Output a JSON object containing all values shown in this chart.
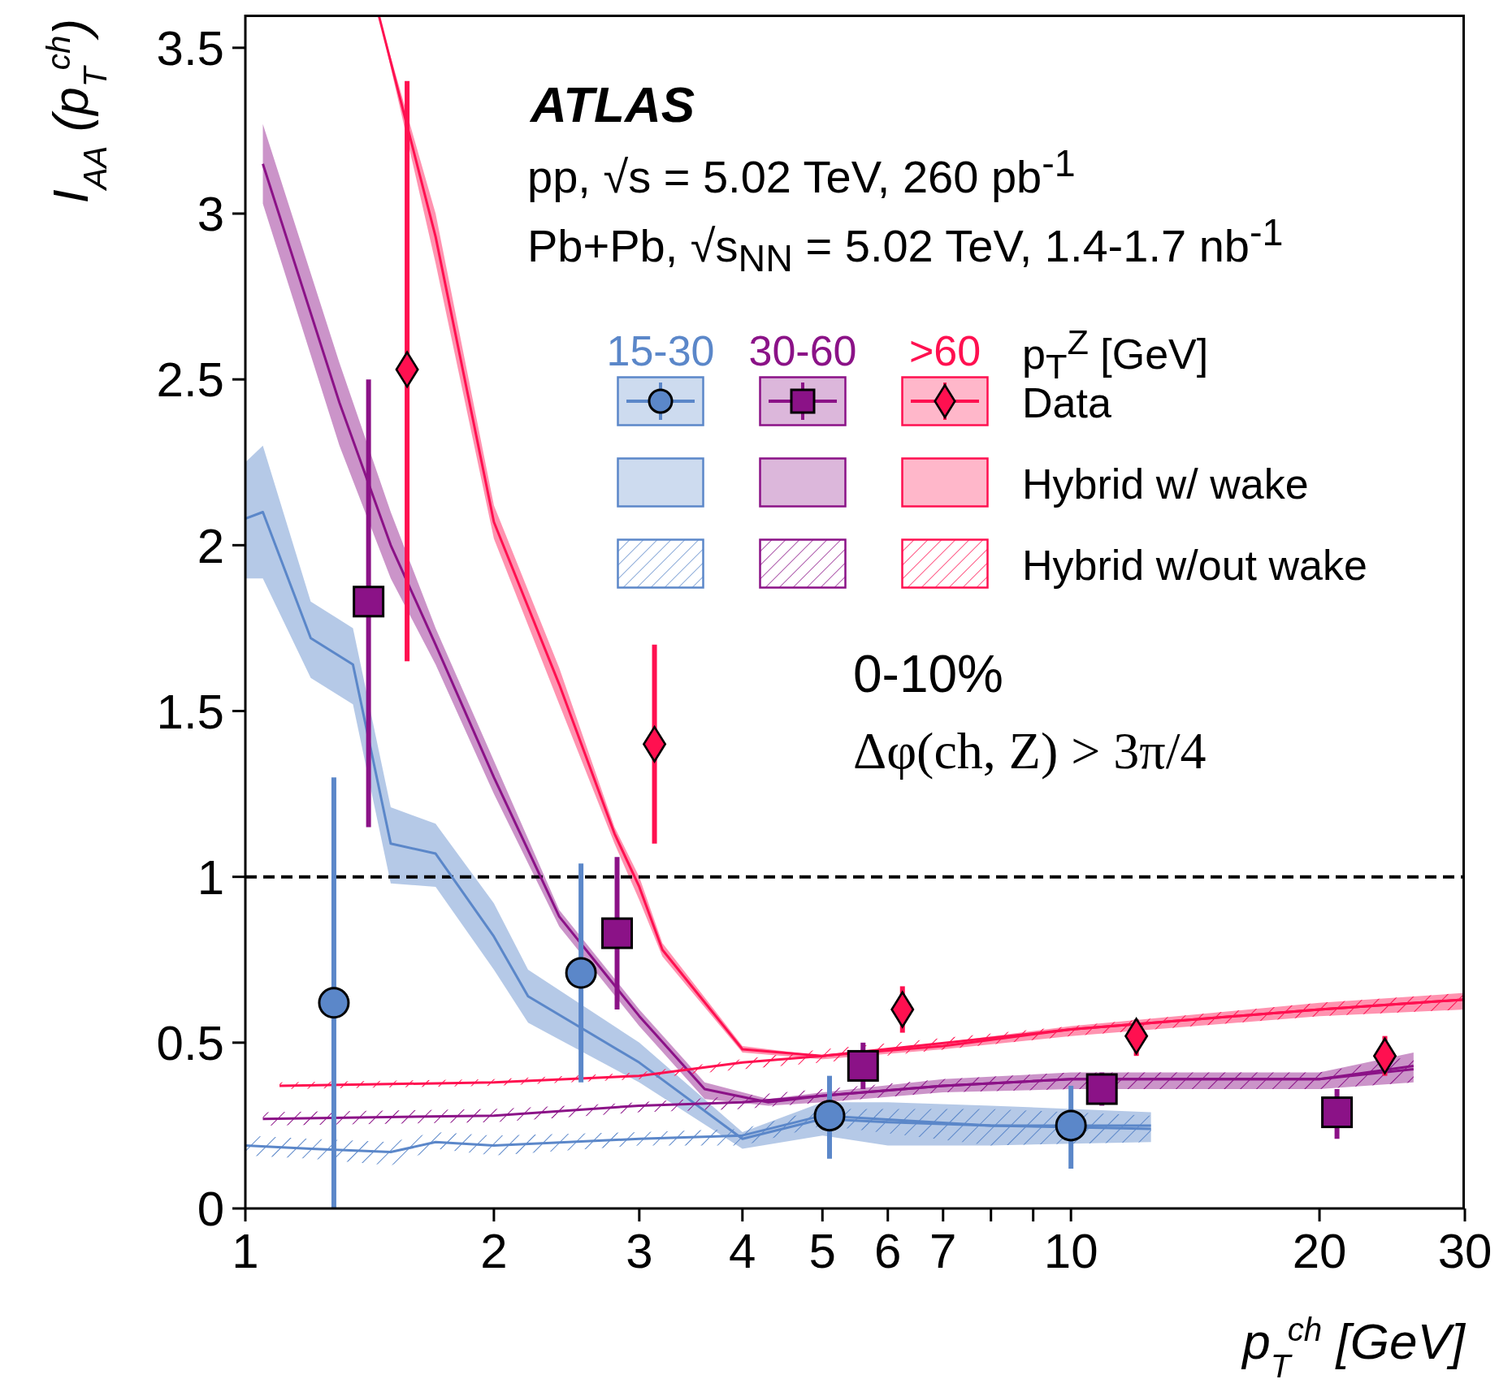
{
  "chart_data": {
    "type": "scatter",
    "xlabel": "p$_{T}$$^{ch}$ [GeV]",
    "ylabel": "I$_{AA}$ (p$_{T}$$^{ch}$)",
    "legend_title": "p$_{T}$$^{Z}$ [GeV]",
    "legend": "top",
    "log": "x",
    "xlim": [
      1,
      30
    ],
    "xticks": [
      1,
      2,
      3,
      4,
      5,
      6,
      7,
      {
        "value": 8,
        "label": null
      },
      {
        "value": 9,
        "label": null
      },
      10,
      20,
      30
    ],
    "ylim": [
      0,
      3.6
    ],
    "yticks": [
      0,
      0.5,
      1,
      1.5,
      2,
      2.5,
      3,
      3.5
    ],
    "ref_lines": [
      {
        "axis": "y",
        "value": 1,
        "color": "#000000",
        "line_style": "dashed"
      }
    ],
    "annotations": [
      "ATLAS",
      "pp, √s = 5.02 TeV, 260 pb$^{-1}$",
      "Pb+Pb, √s$_{NN}$ = 5.02 TeV, 1.4-1.7 nb$^{-1}$",
      "0-10%",
      "Δφ(ch, Z) > 3π/4",
      "Data",
      "Hybrid w/ wake",
      "Hybrid w/out wake"
    ],
    "series": [
      {
        "name": "15-30",
        "marker": "circle",
        "color": "#5b87c9",
        "x": [
          1.28,
          2.55,
          5.1,
          10
        ],
        "values": [
          0.62,
          0.71,
          0.28,
          0.25
        ],
        "errors": [
          [
            0,
            1.3
          ],
          [
            0.38,
            1.04
          ],
          [
            0.15,
            0.4
          ],
          [
            0.12,
            0.37
          ]
        ]
      },
      {
        "name": "30-60",
        "marker": "square",
        "color": "#8b1287",
        "x": [
          1.41,
          2.82,
          5.6,
          10.9,
          21
        ],
        "values": [
          1.83,
          0.83,
          0.43,
          0.36,
          0.29
        ],
        "errors": [
          [
            1.15,
            2.5
          ],
          [
            0.6,
            1.06
          ],
          [
            0.36,
            0.5
          ],
          [
            0.31,
            0.41
          ],
          [
            0.21,
            0.36
          ]
        ]
      },
      {
        "name": ">60",
        "marker": "diamond",
        "color": "#ff1050",
        "x": [
          1.57,
          3.13,
          6.25,
          12,
          24
        ],
        "values": [
          2.53,
          1.4,
          0.6,
          0.52,
          0.46
        ],
        "errors": [
          [
            1.65,
            3.4
          ],
          [
            1.1,
            1.7
          ],
          [
            0.53,
            0.67
          ],
          [
            0.46,
            0.57
          ],
          [
            0.4,
            0.52
          ]
        ]
      },
      {
        "type": "line",
        "color": "#5b87c9",
        "x": [
          1,
          1.05,
          1.2,
          1.35,
          1.5,
          1.7,
          2,
          2.2,
          3,
          4,
          5,
          6,
          8,
          12.5
        ],
        "values": [
          2.08,
          2.1,
          1.72,
          1.64,
          1.1,
          1.07,
          0.82,
          0.64,
          0.44,
          0.21,
          0.27,
          0.26,
          0.25,
          0.25
        ],
        "lower": [
          1.9,
          1.9,
          1.6,
          1.52,
          0.98,
          0.97,
          0.72,
          0.56,
          0.38,
          0.18,
          0.22,
          0.19,
          0.19,
          0.2
        ],
        "upper": [
          2.25,
          2.3,
          1.83,
          1.75,
          1.21,
          1.16,
          0.92,
          0.72,
          0.5,
          0.23,
          0.32,
          0.32,
          0.31,
          0.29
        ]
      },
      {
        "type": "line",
        "color": "#8b1287",
        "x": [
          1.05,
          1.3,
          1.5,
          1.7,
          2,
          2.4,
          3,
          3.6,
          4.3,
          5,
          7,
          10,
          20,
          26
        ],
        "values": [
          3.15,
          2.43,
          2,
          1.7,
          1.3,
          0.88,
          0.58,
          0.36,
          0.32,
          0.34,
          0.37,
          0.39,
          0.39,
          0.43
        ],
        "lower": [
          3.03,
          2.3,
          1.9,
          1.64,
          1.25,
          0.85,
          0.55,
          0.33,
          0.31,
          0.32,
          0.35,
          0.36,
          0.36,
          0.38
        ],
        "upper": [
          3.27,
          2.55,
          2.1,
          1.75,
          1.35,
          0.9,
          0.6,
          0.38,
          0.33,
          0.35,
          0.39,
          0.41,
          0.41,
          0.47
        ]
      },
      {
        "type": "line",
        "color": "#ff1050",
        "x": [
          1.45,
          1.7,
          2,
          2.4,
          2.8,
          3,
          3.2,
          4,
          5,
          7,
          10,
          20,
          30
        ],
        "values": [
          3.6,
          2.93,
          2.07,
          1.58,
          1.13,
          0.97,
          0.78,
          0.48,
          0.46,
          0.49,
          0.54,
          0.6,
          0.63
        ],
        "lower": [
          3.6,
          2.85,
          2.02,
          1.52,
          1.1,
          0.93,
          0.76,
          0.47,
          0.45,
          0.48,
          0.52,
          0.58,
          0.6
        ],
        "upper": [
          3.6,
          3,
          2.12,
          1.63,
          1.15,
          1,
          0.8,
          0.49,
          0.46,
          0.5,
          0.55,
          0.62,
          0.65
        ]
      },
      {
        "type": "line",
        "color": "#5b87c9",
        "x": [
          1,
          1.2,
          1.5,
          1.7,
          2,
          3,
          4,
          5,
          8,
          12.5
        ],
        "values": [
          0.19,
          0.18,
          0.17,
          0.2,
          0.19,
          0.21,
          0.22,
          0.28,
          0.25,
          0.24
        ],
        "lower": [
          0.16,
          0.15,
          0.13,
          0.18,
          0.16,
          0.19,
          0.19,
          0.25,
          0.19,
          0.2
        ],
        "upper": [
          0.22,
          0.21,
          0.2,
          0.23,
          0.22,
          0.23,
          0.24,
          0.3,
          0.3,
          0.28
        ]
      },
      {
        "type": "line",
        "color": "#8b1287",
        "x": [
          1.05,
          2,
          3,
          4,
          7,
          10,
          20,
          26
        ],
        "values": [
          0.27,
          0.28,
          0.31,
          0.32,
          0.37,
          0.39,
          0.39,
          0.42
        ],
        "lower": [
          0.25,
          0.26,
          0.29,
          0.3,
          0.35,
          0.36,
          0.36,
          0.38
        ],
        "upper": [
          0.29,
          0.3,
          0.32,
          0.34,
          0.39,
          0.41,
          0.41,
          0.46
        ]
      },
      {
        "type": "line",
        "color": "#ff1050",
        "x": [
          1.1,
          2,
          3,
          4,
          5,
          10,
          20,
          30
        ],
        "values": [
          0.37,
          0.38,
          0.4,
          0.44,
          0.46,
          0.54,
          0.6,
          0.63
        ],
        "lower": [
          0.36,
          0.37,
          0.39,
          0.42,
          0.44,
          0.52,
          0.58,
          0.6
        ],
        "upper": [
          0.38,
          0.39,
          0.41,
          0.45,
          0.48,
          0.55,
          0.62,
          0.65
        ]
      }
    ]
  }
}
